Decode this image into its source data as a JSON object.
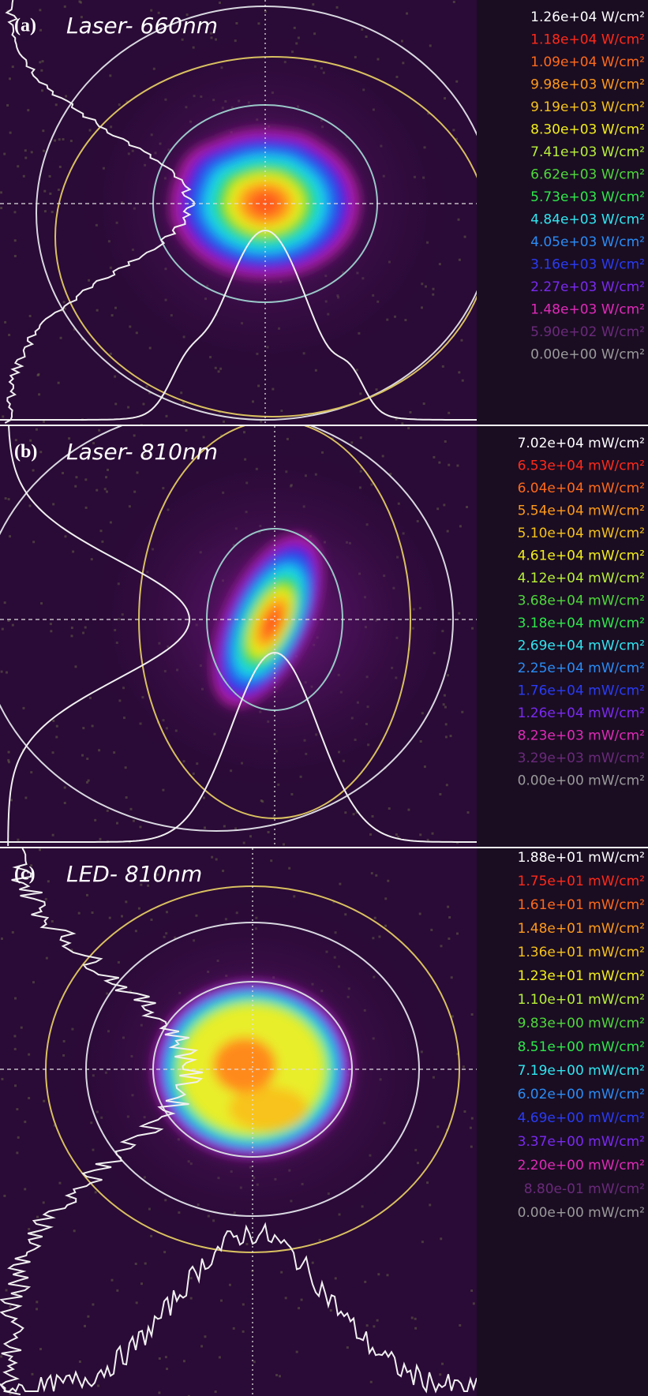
{
  "panels": [
    {
      "label": "(a)",
      "title": "Laser- 660nm",
      "legend": [
        {
          "text": "1.26e+04 W/cm²",
          "color": "#ffffff"
        },
        {
          "text": "1.18e+04 W/cm²",
          "color": "#ff2a1a"
        },
        {
          "text": "1.09e+04 W/cm²",
          "color": "#ff6a1a"
        },
        {
          "text": "9.98e+03 W/cm²",
          "color": "#ff9a1a"
        },
        {
          "text": "9.19e+03 W/cm²",
          "color": "#f5c21a"
        },
        {
          "text": "8.30e+03 W/cm²",
          "color": "#f2ee1a"
        },
        {
          "text": "7.41e+03 W/cm²",
          "color": "#b8f03a"
        },
        {
          "text": "6.62e+03 W/cm²",
          "color": "#4ed83a"
        },
        {
          "text": "5.73e+03 W/cm²",
          "color": "#2ee84a"
        },
        {
          "text": "4.84e+03 W/cm²",
          "color": "#30e6f0"
        },
        {
          "text": "4.05e+03 W/cm²",
          "color": "#2a8cf5"
        },
        {
          "text": "3.16e+03 W/cm²",
          "color": "#2a3cf5"
        },
        {
          "text": "2.27e+03 W/cm²",
          "color": "#7a2af0"
        },
        {
          "text": "1.48e+03 W/cm²",
          "color": "#e02ab8"
        },
        {
          "text": "5.90e+02 W/cm²",
          "color": "#6a2a7a"
        },
        {
          "text": "0.00e+00 W/cm²",
          "color": "#9a9a9a"
        }
      ]
    },
    {
      "label": "(b)",
      "title": "Laser- 810nm",
      "legend": [
        {
          "text": "7.02e+04 mW/cm²",
          "color": "#ffffff"
        },
        {
          "text": "6.53e+04 mW/cm²",
          "color": "#ff2a1a"
        },
        {
          "text": "6.04e+04 mW/cm²",
          "color": "#ff6a1a"
        },
        {
          "text": "5.54e+04 mW/cm²",
          "color": "#ff9a1a"
        },
        {
          "text": "5.10e+04 mW/cm²",
          "color": "#f5c21a"
        },
        {
          "text": "4.61e+04 mW/cm²",
          "color": "#f2ee1a"
        },
        {
          "text": "4.12e+04 mW/cm²",
          "color": "#b8f03a"
        },
        {
          "text": "3.68e+04 mW/cm²",
          "color": "#4ed83a"
        },
        {
          "text": "3.18e+04 mW/cm²",
          "color": "#2ee84a"
        },
        {
          "text": "2.69e+04 mW/cm²",
          "color": "#30e6f0"
        },
        {
          "text": "2.25e+04 mW/cm²",
          "color": "#2a8cf5"
        },
        {
          "text": "1.76e+04 mW/cm²",
          "color": "#2a3cf5"
        },
        {
          "text": "1.26e+04 mW/cm²",
          "color": "#7a2af0"
        },
        {
          "text": "8.23e+03 mW/cm²",
          "color": "#e02ab8"
        },
        {
          "text": "3.29e+03 mW/cm²",
          "color": "#6a2a7a"
        },
        {
          "text": "0.00e+00 mW/cm²",
          "color": "#9a9a9a"
        }
      ]
    },
    {
      "label": "(c)",
      "title": "LED- 810nm",
      "legend": [
        {
          "text": "1.88e+01 mW/cm²",
          "color": "#ffffff"
        },
        {
          "text": "1.75e+01 mW/cm²",
          "color": "#ff2a1a"
        },
        {
          "text": "1.61e+01 mW/cm²",
          "color": "#ff6a1a"
        },
        {
          "text": "1.48e+01 mW/cm²",
          "color": "#ff9a1a"
        },
        {
          "text": "1.36e+01 mW/cm²",
          "color": "#f5c21a"
        },
        {
          "text": "1.23e+01 mW/cm²",
          "color": "#f2ee1a"
        },
        {
          "text": "1.10e+01 mW/cm²",
          "color": "#b8f03a"
        },
        {
          "text": "9.83e+00 mW/cm²",
          "color": "#4ed83a"
        },
        {
          "text": "8.51e+00 mW/cm²",
          "color": "#2ee84a"
        },
        {
          "text": "7.19e+00 mW/cm²",
          "color": "#30e6f0"
        },
        {
          "text": "6.02e+00 mW/cm²",
          "color": "#2a8cf5"
        },
        {
          "text": "4.69e+00 mW/cm²",
          "color": "#2a3cf5"
        },
        {
          "text": "3.37e+00 mW/cm²",
          "color": "#7a2af0"
        },
        {
          "text": "2.20e+00 mW/cm²",
          "color": "#e02ab8"
        },
        {
          "text": "8.80e-01 mW/cm²",
          "color": "#6a2a7a"
        },
        {
          "text": "0.00e+00 mW/cm²",
          "color": "#9a9a9a"
        }
      ]
    }
  ]
}
